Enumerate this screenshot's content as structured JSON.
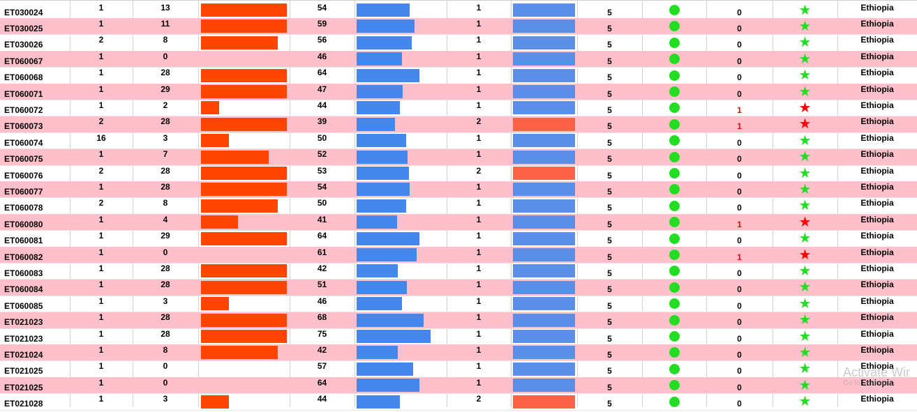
{
  "colors": {
    "pink_row": "#ffc0cb",
    "orange_bar": "#ff4500",
    "blue_bar": "#4488ee",
    "blue_status": "#5b8ee6",
    "red_status": "#ff6347",
    "green_dot": "#22dd22",
    "green_star": "#22dd22",
    "red_star": "#ff0000",
    "red_text": "#ff0000"
  },
  "scales": {
    "bar1_max": 28,
    "bar2_max": 75
  },
  "rows": [
    {
      "id": "ET030024",
      "c1": "1",
      "c2": "13",
      "b1": 28,
      "c3": "54",
      "c4": "1",
      "status": "blue",
      "c5": "5",
      "c6": "0",
      "flag": "green",
      "country": "Ethiopia"
    },
    {
      "id": "ET030025",
      "c1": "1",
      "c2": "11",
      "b1": 28,
      "c3": "59",
      "c4": "1",
      "status": "blue",
      "c5": "5",
      "c6": "0",
      "flag": "green",
      "country": "Ethiopia"
    },
    {
      "id": "ET030026",
      "c1": "2",
      "c2": "8",
      "b1": 25,
      "c3": "56",
      "c4": "1",
      "status": "blue",
      "c5": "5",
      "c6": "0",
      "flag": "green",
      "country": "Ethiopia"
    },
    {
      "id": "ET060067",
      "c1": "1",
      "c2": "0",
      "b1": 0,
      "c3": "46",
      "c4": "1",
      "status": "blue",
      "c5": "5",
      "c6": "0",
      "flag": "green",
      "country": "Ethiopia"
    },
    {
      "id": "ET060068",
      "c1": "1",
      "c2": "28",
      "b1": 28,
      "c3": "64",
      "c4": "1",
      "status": "blue",
      "c5": "5",
      "c6": "0",
      "flag": "green",
      "country": "Ethiopia"
    },
    {
      "id": "ET060071",
      "c1": "1",
      "c2": "29",
      "b1": 28,
      "c3": "47",
      "c4": "1",
      "status": "blue",
      "c5": "5",
      "c6": "0",
      "flag": "green",
      "country": "Ethiopia"
    },
    {
      "id": "ET060072",
      "c1": "1",
      "c2": "2",
      "b1": 6,
      "c3": "44",
      "c4": "1",
      "status": "blue",
      "c5": "5",
      "c6": "1",
      "flag": "red",
      "country": "Ethiopia"
    },
    {
      "id": "ET060073",
      "c1": "2",
      "c2": "28",
      "b1": 28,
      "c3": "39",
      "c4": "2",
      "status": "red",
      "c5": "5",
      "c6": "1",
      "flag": "red",
      "country": "Ethiopia"
    },
    {
      "id": "ET060074",
      "c1": "16",
      "c2": "3",
      "b1": 9,
      "c3": "50",
      "c4": "1",
      "status": "blue",
      "c5": "5",
      "c6": "0",
      "flag": "green",
      "country": "Ethiopia"
    },
    {
      "id": "ET060075",
      "c1": "1",
      "c2": "7",
      "b1": 22,
      "c3": "52",
      "c4": "1",
      "status": "blue",
      "c5": "5",
      "c6": "0",
      "flag": "green",
      "country": "Ethiopia"
    },
    {
      "id": "ET060076",
      "c1": "2",
      "c2": "28",
      "b1": 28,
      "c3": "53",
      "c4": "2",
      "status": "red",
      "c5": "5",
      "c6": "0",
      "flag": "green",
      "country": "Ethiopia"
    },
    {
      "id": "ET060077",
      "c1": "1",
      "c2": "28",
      "b1": 28,
      "c3": "54",
      "c4": "1",
      "status": "blue",
      "c5": "5",
      "c6": "0",
      "flag": "green",
      "country": "Ethiopia"
    },
    {
      "id": "ET060078",
      "c1": "2",
      "c2": "8",
      "b1": 25,
      "c3": "50",
      "c4": "1",
      "status": "blue",
      "c5": "5",
      "c6": "0",
      "flag": "green",
      "country": "Ethiopia"
    },
    {
      "id": "ET060080",
      "c1": "1",
      "c2": "4",
      "b1": 12,
      "c3": "41",
      "c4": "1",
      "status": "blue",
      "c5": "5",
      "c6": "1",
      "flag": "red",
      "country": "Ethiopia"
    },
    {
      "id": "ET060081",
      "c1": "1",
      "c2": "29",
      "b1": 28,
      "c3": "64",
      "c4": "1",
      "status": "blue",
      "c5": "5",
      "c6": "0",
      "flag": "green",
      "country": "Ethiopia"
    },
    {
      "id": "ET060082",
      "c1": "1",
      "c2": "0",
      "b1": 0,
      "c3": "61",
      "c4": "1",
      "status": "blue",
      "c5": "5",
      "c6": "1",
      "flag": "red",
      "country": "Ethiopia"
    },
    {
      "id": "ET060083",
      "c1": "1",
      "c2": "28",
      "b1": 28,
      "c3": "42",
      "c4": "1",
      "status": "blue",
      "c5": "5",
      "c6": "0",
      "flag": "green",
      "country": "Ethiopia"
    },
    {
      "id": "ET060084",
      "c1": "1",
      "c2": "28",
      "b1": 28,
      "c3": "51",
      "c4": "1",
      "status": "blue",
      "c5": "5",
      "c6": "0",
      "flag": "green",
      "country": "Ethiopia"
    },
    {
      "id": "ET060085",
      "c1": "1",
      "c2": "3",
      "b1": 9,
      "c3": "46",
      "c4": "1",
      "status": "blue",
      "c5": "5",
      "c6": "0",
      "flag": "green",
      "country": "Ethiopia"
    },
    {
      "id": "ET021023",
      "c1": "1",
      "c2": "28",
      "b1": 28,
      "c3": "68",
      "c4": "1",
      "status": "blue",
      "c5": "5",
      "c6": "0",
      "flag": "green",
      "country": "Ethiopia"
    },
    {
      "id": "ET021023",
      "c1": "1",
      "c2": "28",
      "b1": 28,
      "c3": "75",
      "c4": "1",
      "status": "blue",
      "c5": "5",
      "c6": "0",
      "flag": "green",
      "country": "Ethiopia"
    },
    {
      "id": "ET021024",
      "c1": "1",
      "c2": "8",
      "b1": 25,
      "c3": "42",
      "c4": "1",
      "status": "blue",
      "c5": "5",
      "c6": "0",
      "flag": "green",
      "country": "Ethiopia"
    },
    {
      "id": "ET021025",
      "c1": "1",
      "c2": "0",
      "b1": 0,
      "c3": "57",
      "c4": "1",
      "status": "blue",
      "c5": "5",
      "c6": "0",
      "flag": "green",
      "country": "Ethiopia"
    },
    {
      "id": "ET021025",
      "c1": "1",
      "c2": "0",
      "b1": 0,
      "c3": "64",
      "c4": "1",
      "status": "blue",
      "c5": "5",
      "c6": "0",
      "flag": "green",
      "country": "Ethiopia"
    },
    {
      "id": "ET021028",
      "c1": "1",
      "c2": "3",
      "b1": 9,
      "c3": "44",
      "c4": "2",
      "status": "red",
      "c5": "5",
      "c6": "0",
      "flag": "green",
      "country": "Ethiopia"
    }
  ],
  "watermark": {
    "line1": "Activate Wir",
    "line2": "Go to Settings to"
  }
}
